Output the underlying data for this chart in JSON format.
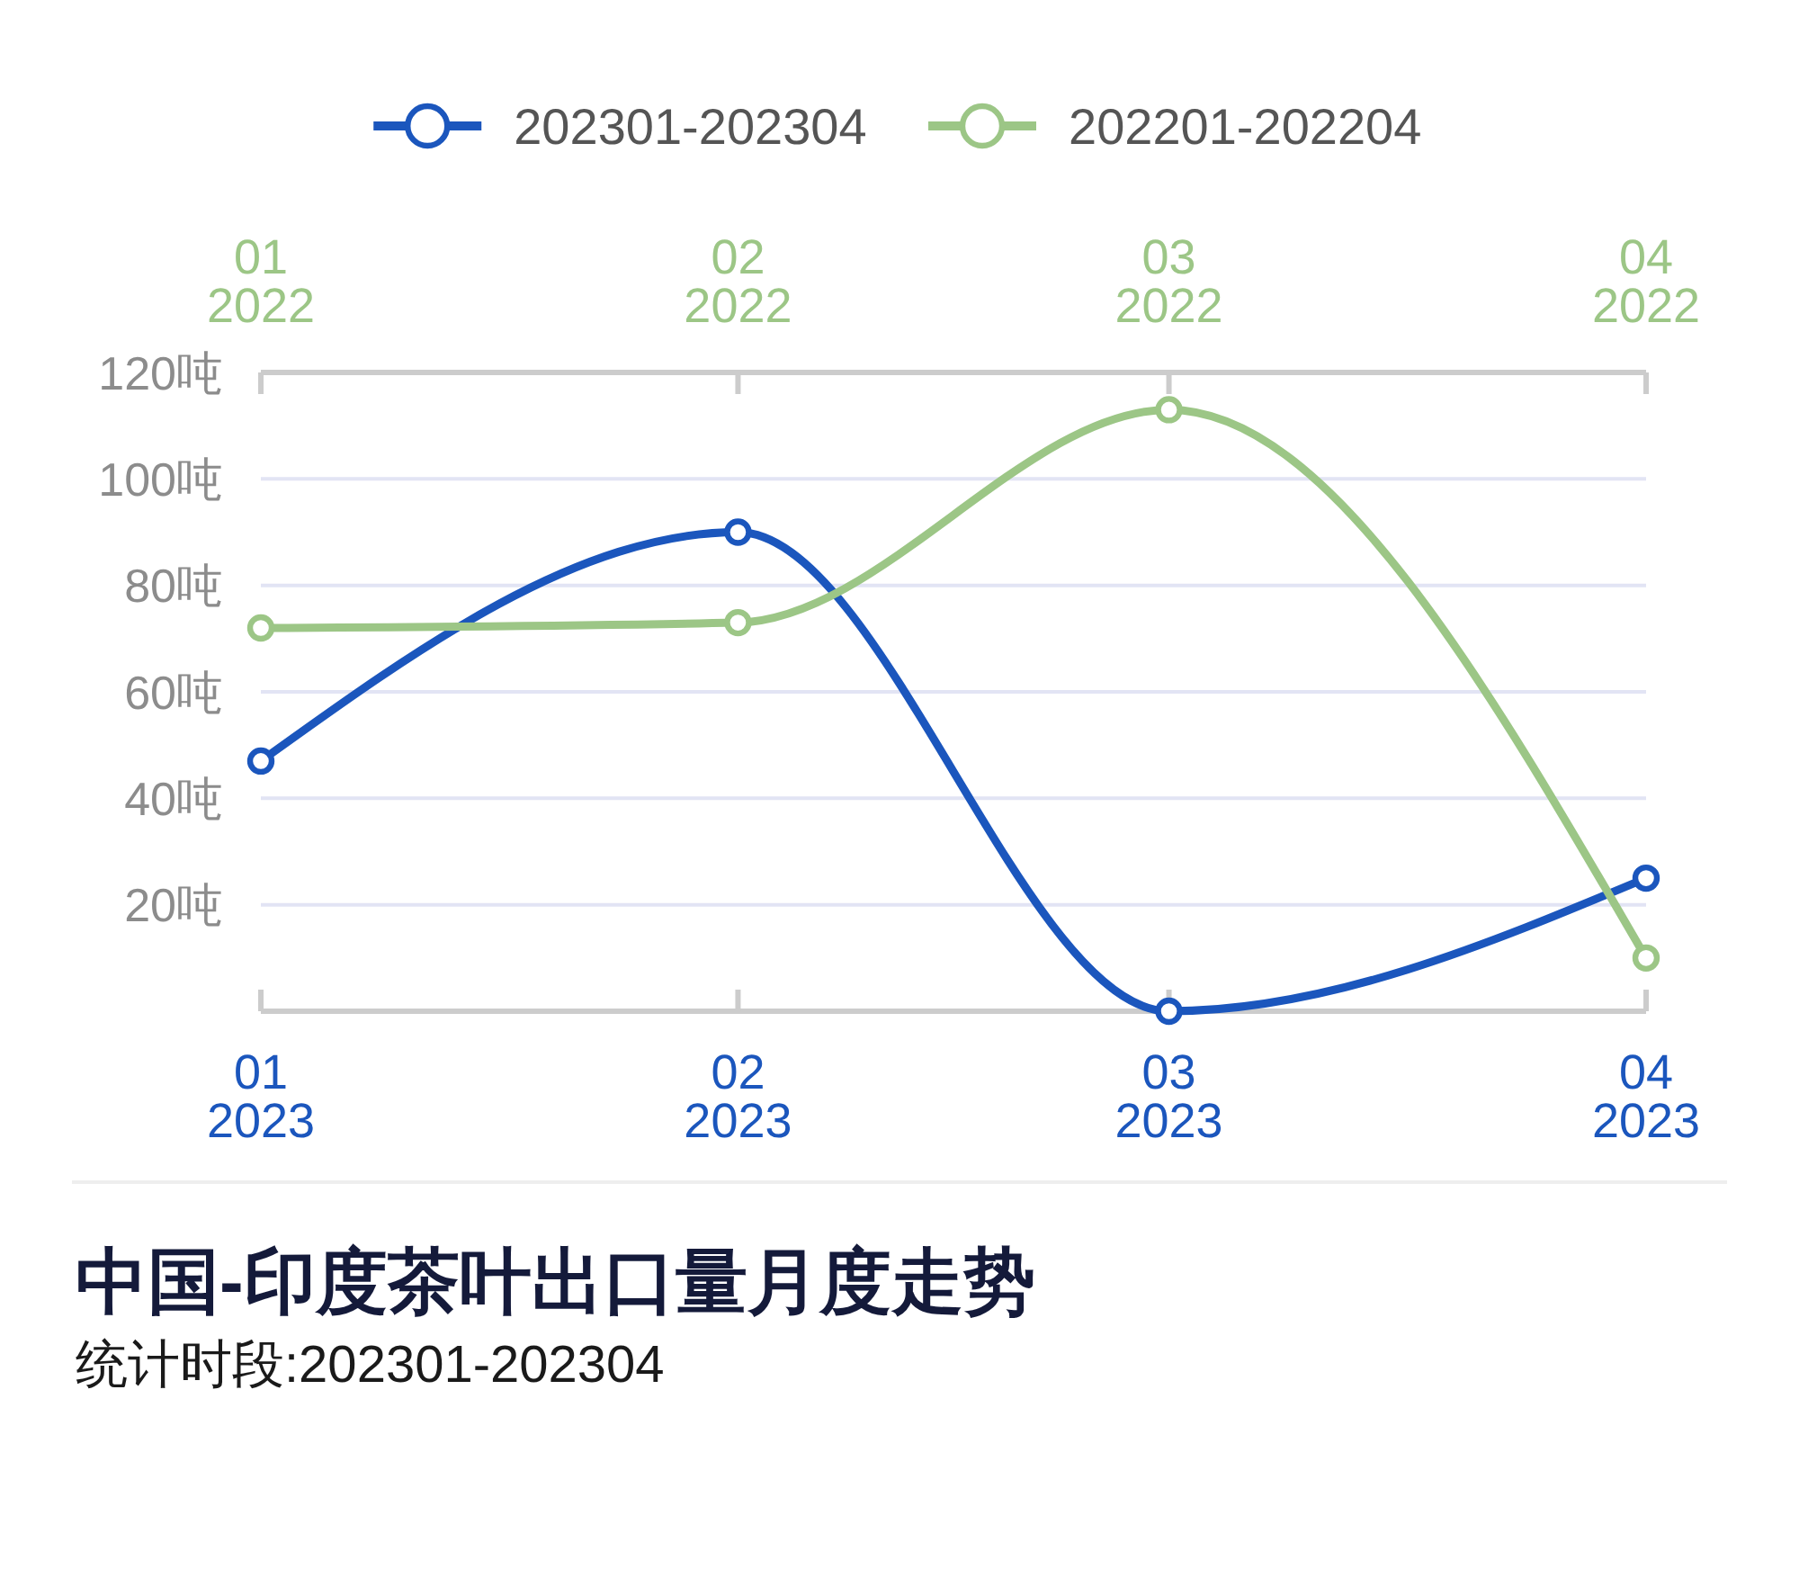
{
  "chart_data": {
    "type": "line",
    "title": "中国-印度茶叶出口量月度走势",
    "subtitle": "统计时段:202301-202304",
    "xlim": [
      "2023-01",
      "2023-04"
    ],
    "xticks": [
      {
        "value": "2023-01",
        "label": "01\n2023"
      },
      {
        "value": "2023-02",
        "label": "02\n2023"
      },
      {
        "value": "2023-03",
        "label": "03\n2023"
      },
      {
        "value": "2023-04",
        "label": "04\n2023"
      }
    ],
    "x2lim": [
      "2022-01",
      "2022-04"
    ],
    "x2ticks": [
      {
        "value": "2022-01",
        "label": "01\n2022"
      },
      {
        "value": "2022-02",
        "label": "02\n2022"
      },
      {
        "value": "2022-03",
        "label": "03\n2022"
      },
      {
        "value": "2022-04",
        "label": "04\n2022"
      }
    ],
    "ylim": [
      0,
      120
    ],
    "yticks": [
      {
        "value": 20,
        "label": "20吨"
      },
      {
        "value": 40,
        "label": "40吨"
      },
      {
        "value": 60,
        "label": "60吨"
      },
      {
        "value": 80,
        "label": "80吨"
      },
      {
        "value": 100,
        "label": "100吨"
      },
      {
        "value": 120,
        "label": "120吨"
      }
    ],
    "series": [
      {
        "name": "202301-202304",
        "color": "#1b56bd",
        "x": [
          "2023-01",
          "2023-02",
          "2023-03",
          "2023-04"
        ],
        "values": [
          47,
          90,
          0,
          25
        ]
      },
      {
        "name": "202201-202204",
        "color": "#9cc686",
        "axis": "x2",
        "x": [
          "2022-01",
          "2022-02",
          "2022-03",
          "2022-04"
        ],
        "values": [
          72,
          73,
          113,
          10
        ]
      }
    ],
    "grid": "y",
    "legend": "top",
    "marker": "circle",
    "line_style": "solid"
  }
}
